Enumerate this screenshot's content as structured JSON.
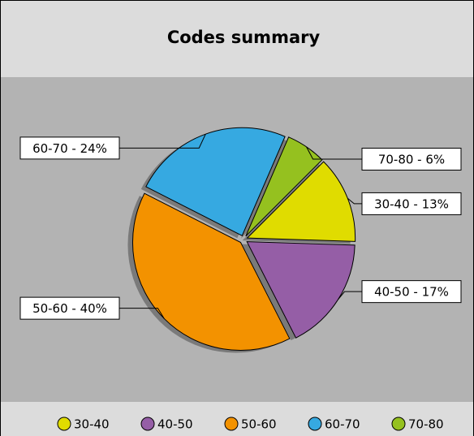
{
  "chart_data": {
    "type": "pie",
    "title": "Codes summary",
    "categories": [
      "30-40",
      "40-50",
      "50-60",
      "60-70",
      "70-80"
    ],
    "values": [
      13,
      17,
      40,
      24,
      6
    ],
    "value_labels": [
      "30-40 - 13%",
      "40-50 - 17%",
      "50-60 - 40%",
      "60-70 - 24%",
      "70-80 - 6%"
    ],
    "colors": [
      "#e0dc00",
      "#955ea6",
      "#f39200",
      "#36a9e1",
      "#95c11f"
    ],
    "legend": "bottom"
  }
}
